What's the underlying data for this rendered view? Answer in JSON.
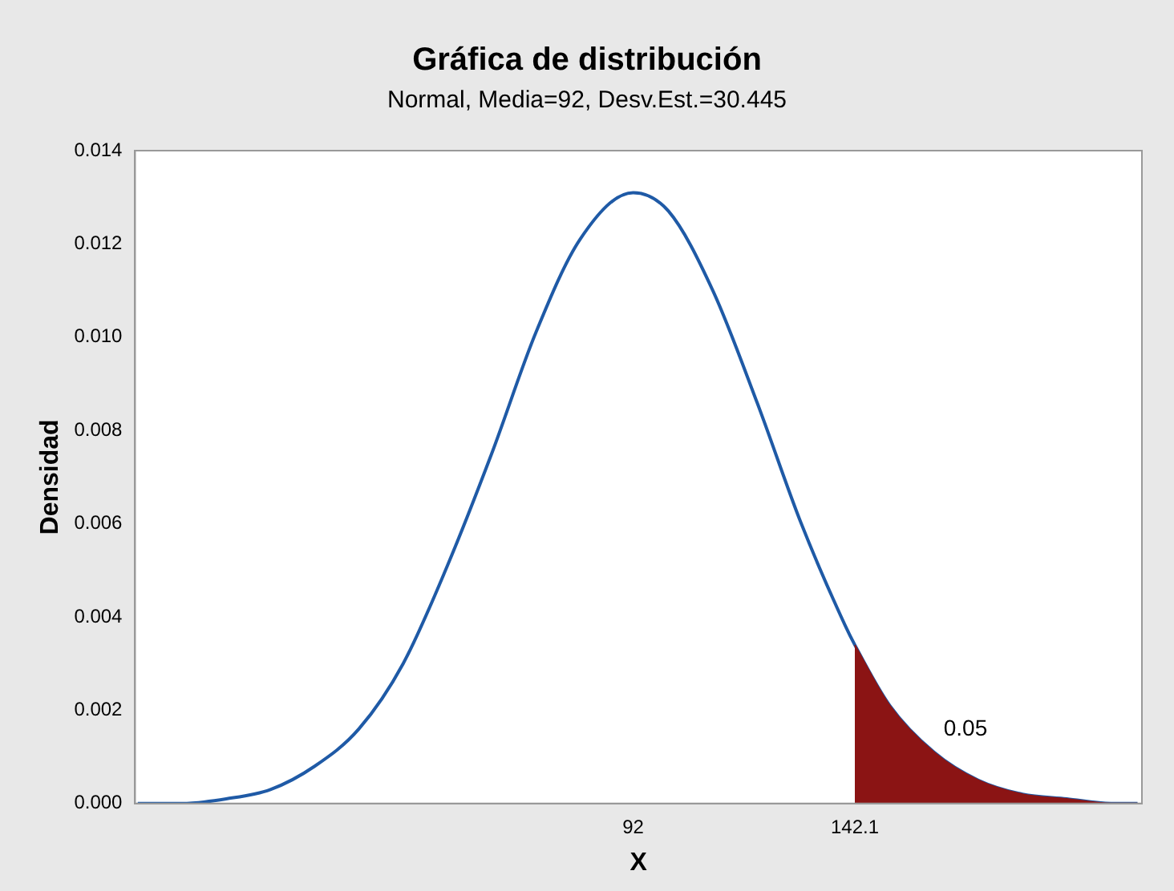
{
  "chart_data": {
    "type": "line",
    "title": "Gráfica de distribución",
    "subtitle": "Normal, Media=92, Desv.Est.=30.445",
    "xlabel": "X",
    "ylabel": "Densidad",
    "x": [
      -20,
      -10,
      0,
      10,
      20,
      30,
      40,
      50,
      60,
      70,
      80,
      92,
      100,
      110,
      120,
      130,
      140,
      142.1,
      150,
      160,
      170,
      180,
      190,
      200,
      206
    ],
    "series": [
      {
        "type": "area",
        "color": "#8b1414",
        "x": [
          142.1,
          150,
          160,
          170,
          180,
          190,
          200,
          206
        ],
        "values": [
          0.0034,
          0.0021,
          0.0011,
          0.0005,
          0.0002,
          0.0001,
          0,
          0
        ]
      },
      {
        "color": "#1f5aa6",
        "values": [
          0,
          0,
          0.0001,
          0.0003,
          0.0008,
          0.0016,
          0.003,
          0.0051,
          0.0075,
          0.0101,
          0.0121,
          0.0131,
          0.0127,
          0.011,
          0.0086,
          0.006,
          0.0038,
          0.0034,
          0.0021,
          0.0011,
          0.0005,
          0.0002,
          0.0001,
          0,
          0
        ]
      }
    ],
    "xlim": [
      -20.6,
      207
    ],
    "xticks": [
      92,
      142.1
    ],
    "ylim": [
      0,
      0.014
    ],
    "yticks": [
      {
        "value": 0,
        "label": "0.000"
      },
      {
        "value": 0.002,
        "label": "0.002"
      },
      {
        "value": 0.004,
        "label": "0.004"
      },
      {
        "value": 0.006,
        "label": "0.006"
      },
      {
        "value": 0.008,
        "label": "0.008"
      },
      {
        "value": 0.01,
        "label": "0.010"
      },
      {
        "value": 0.012,
        "label": "0.012"
      },
      {
        "value": 0.014,
        "label": "0.014"
      }
    ],
    "annotations": [
      "0.05"
    ],
    "grid": false,
    "legend": false,
    "marker": "none",
    "line_style": "solid"
  }
}
